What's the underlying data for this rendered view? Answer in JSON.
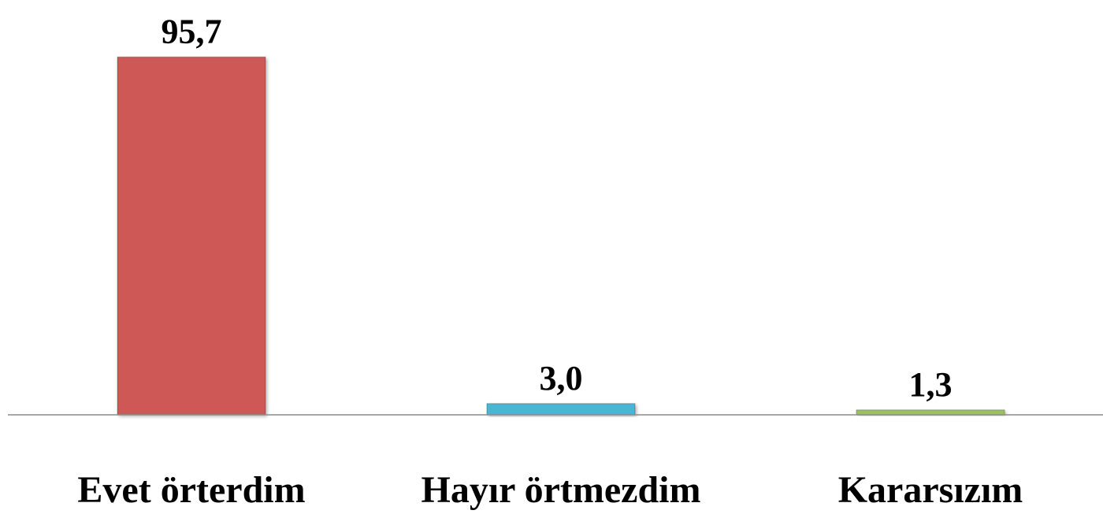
{
  "chart_data": {
    "type": "bar",
    "categories": [
      "Evet örterdim",
      "Hayır örtmezdim",
      "Kararsızım"
    ],
    "values": [
      95.7,
      3.0,
      1.3
    ],
    "value_labels": [
      "95,7",
      "3,0",
      "1,3"
    ],
    "colors": [
      "#cd5856",
      "#4bb5d3",
      "#9bc355"
    ],
    "ylim": [
      0,
      100
    ]
  }
}
